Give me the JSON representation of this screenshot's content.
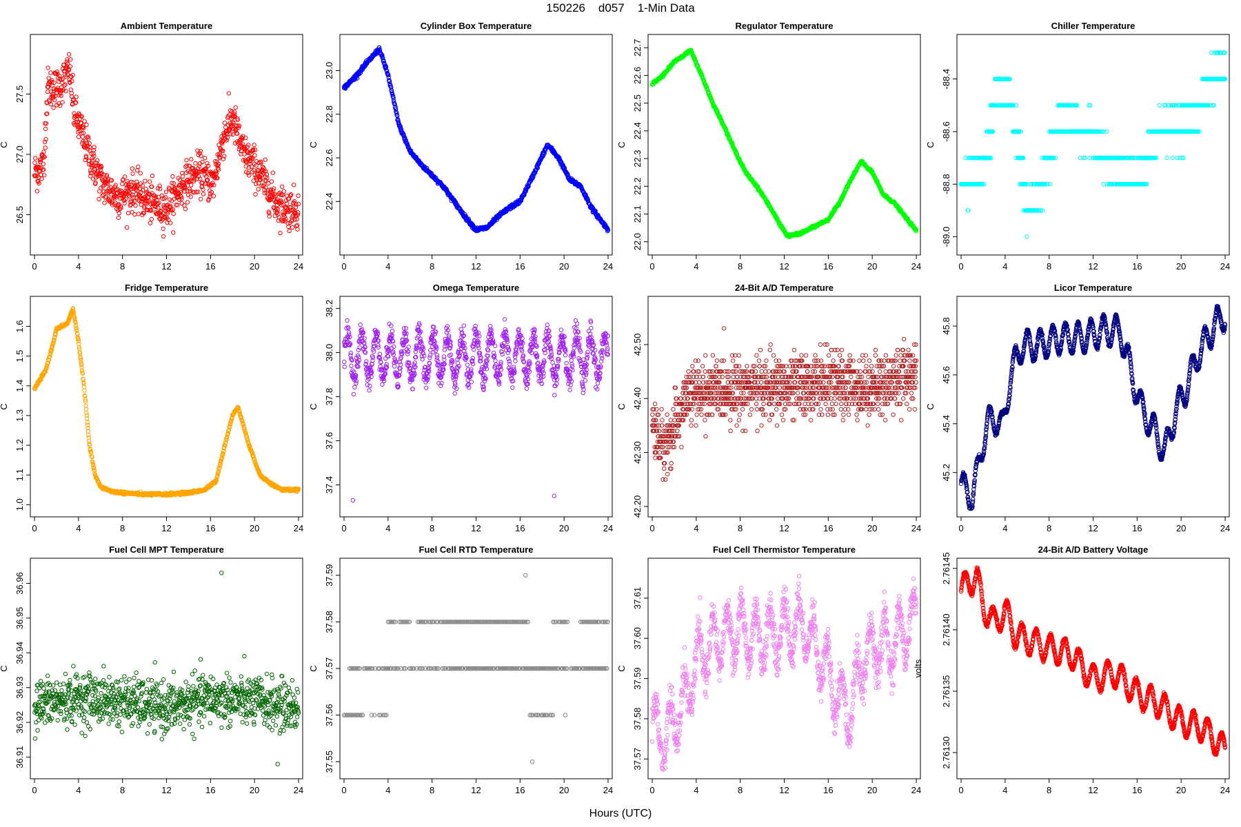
{
  "title": "150226    d057    1-Min Data",
  "xlabel": "Hours (UTC)",
  "chart_data": [
    {
      "type": "scatter",
      "title": "Ambient Temperature",
      "ylabel": "C",
      "color": "#ff0000",
      "xlim": [
        0,
        24
      ],
      "ylim": [
        26.23,
        27.93
      ],
      "xticks": [
        0,
        4,
        8,
        12,
        16,
        20,
        24
      ],
      "yticks": [
        "26.5",
        "27.0",
        "27.5"
      ],
      "anchors": [
        [
          0,
          26.85
        ],
        [
          0.8,
          26.9
        ],
        [
          1.2,
          27.55
        ],
        [
          2.2,
          27.55
        ],
        [
          3.2,
          27.7
        ],
        [
          3.6,
          27.35
        ],
        [
          4.2,
          27.2
        ],
        [
          5.2,
          26.95
        ],
        [
          6.2,
          26.75
        ],
        [
          7.5,
          26.65
        ],
        [
          9,
          26.7
        ],
        [
          10.5,
          26.6
        ],
        [
          12,
          26.55
        ],
        [
          13.5,
          26.75
        ],
        [
          15,
          26.85
        ],
        [
          16.2,
          26.75
        ],
        [
          17.2,
          27.15
        ],
        [
          18,
          27.3
        ],
        [
          19,
          27.0
        ],
        [
          20,
          26.9
        ],
        [
          21,
          26.75
        ],
        [
          22,
          26.6
        ],
        [
          23,
          26.55
        ],
        [
          24,
          26.55
        ]
      ],
      "noise": 0.15,
      "n": 1000
    },
    {
      "type": "scatter",
      "title": "Cylinder Box Temperature",
      "ylabel": "C",
      "color": "#0000ff",
      "xlim": [
        0,
        24
      ],
      "ylim": [
        22.19,
        23.13
      ],
      "xticks": [
        0,
        4,
        8,
        12,
        16,
        20,
        24
      ],
      "yticks": [
        "22.4",
        "22.6",
        "22.8",
        "23.0"
      ],
      "anchors": [
        [
          0,
          22.92
        ],
        [
          1,
          22.97
        ],
        [
          2,
          23.03
        ],
        [
          3.2,
          23.1
        ],
        [
          4,
          22.98
        ],
        [
          5,
          22.75
        ],
        [
          6,
          22.63
        ],
        [
          7,
          22.57
        ],
        [
          8,
          22.52
        ],
        [
          9,
          22.47
        ],
        [
          10,
          22.4
        ],
        [
          11,
          22.33
        ],
        [
          12,
          22.27
        ],
        [
          13,
          22.28
        ],
        [
          14,
          22.33
        ],
        [
          15,
          22.37
        ],
        [
          16,
          22.4
        ],
        [
          17,
          22.5
        ],
        [
          18.5,
          22.66
        ],
        [
          19.5,
          22.6
        ],
        [
          20.5,
          22.5
        ],
        [
          21.5,
          22.47
        ],
        [
          22.5,
          22.37
        ],
        [
          24,
          22.27
        ]
      ],
      "noise": 0.008,
      "n": 900
    },
    {
      "type": "scatter",
      "title": "Regulator Temperature",
      "ylabel": "C",
      "color": "#00ff00",
      "xlim": [
        0,
        24
      ],
      "ylim": [
        21.98,
        22.72
      ],
      "xticks": [
        0,
        4,
        8,
        12,
        16,
        20,
        24
      ],
      "yticks": [
        "22.0",
        "22.1",
        "22.2",
        "22.3",
        "22.4",
        "22.5",
        "22.6",
        "22.7"
      ],
      "anchors": [
        [
          0,
          22.57
        ],
        [
          1,
          22.6
        ],
        [
          2,
          22.65
        ],
        [
          3.5,
          22.69
        ],
        [
          4.5,
          22.6
        ],
        [
          5.5,
          22.5
        ],
        [
          6.5,
          22.42
        ],
        [
          7.5,
          22.33
        ],
        [
          8.5,
          22.25
        ],
        [
          9.5,
          22.2
        ],
        [
          10.5,
          22.14
        ],
        [
          11.5,
          22.07
        ],
        [
          12.3,
          22.02
        ],
        [
          13.5,
          22.03
        ],
        [
          14.5,
          22.05
        ],
        [
          16,
          22.08
        ],
        [
          17,
          22.14
        ],
        [
          18,
          22.22
        ],
        [
          19,
          22.29
        ],
        [
          20,
          22.25
        ],
        [
          21,
          22.17
        ],
        [
          22,
          22.14
        ],
        [
          24,
          22.04
        ]
      ],
      "noise": 0.004,
      "n": 900
    },
    {
      "type": "scatter",
      "title": "Chiller Temperature",
      "ylabel": "C",
      "color": "#00ffff",
      "xlim": [
        0,
        24
      ],
      "ylim": [
        -89.04,
        -88.26
      ],
      "xticks": [
        0,
        4,
        8,
        12,
        16,
        20,
        24
      ],
      "yticks": [
        "-89.0",
        "-88.8",
        "-88.6",
        "-88.4"
      ],
      "levels": [
        -89.0,
        -88.9,
        -88.8,
        -88.7,
        -88.6,
        -88.5,
        -88.4,
        -88.3
      ],
      "anchors": [
        [
          0,
          -88.8
        ],
        [
          1.5,
          -88.78
        ],
        [
          2.5,
          -88.65
        ],
        [
          3.2,
          -88.45
        ],
        [
          4.2,
          -88.45
        ],
        [
          5.2,
          -88.65
        ],
        [
          6,
          -88.9
        ],
        [
          7,
          -88.85
        ],
        [
          8,
          -88.68
        ],
        [
          9,
          -88.55
        ],
        [
          10,
          -88.55
        ],
        [
          11,
          -88.6
        ],
        [
          12,
          -88.6
        ],
        [
          13,
          -88.7
        ],
        [
          14.5,
          -88.75
        ],
        [
          16,
          -88.78
        ],
        [
          17,
          -88.7
        ],
        [
          18,
          -88.6
        ],
        [
          19.5,
          -88.58
        ],
        [
          21,
          -88.58
        ],
        [
          22.5,
          -88.42
        ],
        [
          24,
          -88.36
        ]
      ],
      "noise": 0.06,
      "n": 1400
    },
    {
      "type": "scatter",
      "title": "Fridge Temperature",
      "ylabel": "C",
      "color": "#ffa500",
      "xlim": [
        0,
        24
      ],
      "ylim": [
        0.985,
        1.675
      ],
      "xticks": [
        0,
        4,
        8,
        12,
        16,
        20,
        24
      ],
      "yticks": [
        "1.0",
        "1.1",
        "1.2",
        "1.3",
        "1.4",
        "1.5",
        "1.6"
      ],
      "anchors": [
        [
          0,
          1.39
        ],
        [
          0.5,
          1.42
        ],
        [
          1,
          1.45
        ],
        [
          1.6,
          1.53
        ],
        [
          2,
          1.59
        ],
        [
          3,
          1.61
        ],
        [
          3.5,
          1.66
        ],
        [
          4,
          1.55
        ],
        [
          4.5,
          1.4
        ],
        [
          5,
          1.2
        ],
        [
          5.5,
          1.1
        ],
        [
          6,
          1.06
        ],
        [
          7,
          1.045
        ],
        [
          8,
          1.04
        ],
        [
          10,
          1.035
        ],
        [
          12,
          1.035
        ],
        [
          14,
          1.04
        ],
        [
          15.5,
          1.05
        ],
        [
          16.5,
          1.08
        ],
        [
          17.3,
          1.2
        ],
        [
          18,
          1.3
        ],
        [
          18.5,
          1.33
        ],
        [
          19.5,
          1.2
        ],
        [
          20.5,
          1.1
        ],
        [
          21.5,
          1.07
        ],
        [
          22.5,
          1.05
        ],
        [
          24,
          1.05
        ]
      ],
      "noise": 0.004,
      "n": 900
    },
    {
      "type": "scatter",
      "title": "Omega Temperature",
      "ylabel": "C",
      "color": "#a020f0",
      "xlim": [
        0,
        24
      ],
      "ylim": [
        37.29,
        38.22
      ],
      "xticks": [
        0,
        4,
        8,
        12,
        16,
        20,
        24
      ],
      "yticks": [
        "37.4",
        "37.6",
        "37.8",
        "38.0",
        "38.2"
      ],
      "wave": {
        "base": 37.98,
        "amp": 0.1,
        "period": 1.3
      },
      "noise": 0.05,
      "n": 1100,
      "outliers": [
        [
          0.8,
          37.33
        ],
        [
          19.1,
          37.35
        ]
      ]
    },
    {
      "type": "scatter",
      "title": "24-Bit A/D Temperature",
      "ylabel": "C",
      "color": "#b22222",
      "xlim": [
        0,
        24
      ],
      "ylim": [
        42.195,
        42.575
      ],
      "xticks": [
        0,
        4,
        8,
        12,
        16,
        20,
        24
      ],
      "yticks": [
        "42.20",
        "42.30",
        "42.40",
        "42.50"
      ],
      "levels": [
        42.2,
        42.21,
        42.22,
        42.23,
        42.24,
        42.25,
        42.26,
        42.27,
        42.28,
        42.29,
        42.3,
        42.31,
        42.32,
        42.33,
        42.34,
        42.35,
        42.36,
        42.37,
        42.38,
        42.39,
        42.4,
        42.41,
        42.42,
        42.43,
        42.44,
        42.45,
        42.46,
        42.47,
        42.48,
        42.49,
        42.5,
        42.51,
        42.52,
        42.53,
        42.54,
        42.55,
        42.56
      ],
      "anchors": [
        [
          0,
          42.35
        ],
        [
          1,
          42.31
        ],
        [
          2,
          42.34
        ],
        [
          3,
          42.4
        ],
        [
          4,
          42.41
        ],
        [
          8,
          42.42
        ],
        [
          12,
          42.42
        ],
        [
          16,
          42.43
        ],
        [
          20,
          42.42
        ],
        [
          24,
          42.45
        ]
      ],
      "noise": 0.05,
      "n": 1400
    },
    {
      "type": "scatter",
      "title": "Licor Temperature",
      "ylabel": "C",
      "color": "#000080",
      "xlim": [
        0,
        24
      ],
      "ylim": [
        45.05,
        45.89
      ],
      "xticks": [
        0,
        4,
        8,
        12,
        16,
        20,
        24
      ],
      "yticks": [
        "45.2",
        "45.4",
        "45.6",
        "45.8"
      ],
      "anchors": [
        [
          0,
          45.16
        ],
        [
          0.4,
          45.12
        ],
        [
          1,
          45.1
        ],
        [
          1.5,
          45.2
        ],
        [
          2,
          45.33
        ],
        [
          2.5,
          45.41
        ],
        [
          3.2,
          45.42
        ],
        [
          3.8,
          45.38
        ],
        [
          4.5,
          45.6
        ],
        [
          5.5,
          45.72
        ],
        [
          7,
          45.72
        ],
        [
          9,
          45.75
        ],
        [
          11,
          45.75
        ],
        [
          13,
          45.78
        ],
        [
          14.5,
          45.78
        ],
        [
          15.5,
          45.6
        ],
        [
          16.5,
          45.45
        ],
        [
          17.5,
          45.38
        ],
        [
          18.5,
          45.28
        ],
        [
          19.5,
          45.45
        ],
        [
          20.5,
          45.55
        ],
        [
          21.5,
          45.68
        ],
        [
          23,
          45.8
        ],
        [
          24,
          45.85
        ]
      ],
      "wave": {
        "amp": 0.06,
        "period": 1.15
      },
      "noise": 0.008,
      "n": 1400
    },
    {
      "type": "scatter",
      "title": "Fuel Cell MPT Temperature",
      "ylabel": "C",
      "color": "#006400",
      "xlim": [
        0,
        24
      ],
      "ylim": [
        36.906,
        36.965
      ],
      "xticks": [
        0,
        4,
        8,
        12,
        16,
        20,
        24
      ],
      "yticks": [
        "36.91",
        "36.92",
        "36.93",
        "36.94",
        "36.95",
        "36.96"
      ],
      "anchors": [
        [
          0,
          36.925
        ],
        [
          4,
          36.927
        ],
        [
          8,
          36.926
        ],
        [
          12,
          36.924
        ],
        [
          16,
          36.927
        ],
        [
          20,
          36.926
        ],
        [
          24,
          36.924
        ]
      ],
      "noise": 0.0065,
      "n": 1000,
      "outliers": [
        [
          17,
          36.963
        ],
        [
          22.1,
          36.908
        ]
      ]
    },
    {
      "type": "scatter",
      "title": "Fuel Cell RTD Temperature",
      "ylabel": "C",
      "color": "#808080",
      "xlim": [
        0,
        24
      ],
      "ylim": [
        37.548,
        37.592
      ],
      "xticks": [
        0,
        4,
        8,
        12,
        16,
        20,
        24
      ],
      "yticks": [
        "37.55",
        "37.56",
        "37.57",
        "37.58",
        "37.59"
      ],
      "rows": [
        {
          "y": 37.56,
          "spans": [
            [
              0,
              1.8
            ],
            [
              2.5,
              2.8
            ],
            [
              3.2,
              3.9
            ],
            [
              16.9,
              19
            ]
          ]
        },
        {
          "y": 37.57,
          "spans": [
            [
              0.5,
              24
            ]
          ]
        },
        {
          "y": 37.58,
          "spans": [
            [
              4,
              6
            ],
            [
              6.7,
              16.8
            ],
            [
              19,
              20.5
            ],
            [
              21.5,
              24
            ]
          ]
        }
      ],
      "outliers": [
        [
          16.5,
          37.59
        ],
        [
          17.1,
          37.55
        ],
        [
          20.1,
          37.56
        ]
      ]
    },
    {
      "type": "scatter",
      "title": "Fuel Cell Thermistor Temperature",
      "ylabel": "C",
      "color": "#ee82ee",
      "xlim": [
        0,
        24
      ],
      "ylim": [
        37.567,
        37.618
      ],
      "xticks": [
        0,
        4,
        8,
        12,
        16,
        20,
        24
      ],
      "yticks": [
        "37.57",
        "37.58",
        "37.59",
        "37.60",
        "37.61"
      ],
      "anchors": [
        [
          0,
          37.578
        ],
        [
          1,
          37.574
        ],
        [
          2,
          37.58
        ],
        [
          3,
          37.584
        ],
        [
          4,
          37.595
        ],
        [
          6,
          37.6
        ],
        [
          8,
          37.602
        ],
        [
          10,
          37.6
        ],
        [
          12,
          37.602
        ],
        [
          14,
          37.603
        ],
        [
          15,
          37.597
        ],
        [
          16,
          37.592
        ],
        [
          17,
          37.585
        ],
        [
          18,
          37.582
        ],
        [
          19,
          37.594
        ],
        [
          20,
          37.598
        ],
        [
          22,
          37.598
        ],
        [
          24,
          37.606
        ]
      ],
      "wave": {
        "amp": 0.007,
        "period": 1.3
      },
      "noise": 0.004,
      "n": 1300
    },
    {
      "type": "scatter",
      "title": "24-Bit A/D Battery Voltage",
      "ylabel": "volts",
      "color": "#ff0000",
      "xlim": [
        0,
        24
      ],
      "ylim": [
        2.761285,
        2.761452
      ],
      "xticks": [
        0,
        4,
        8,
        12,
        16,
        20,
        24
      ],
      "yticks": [
        "2.76130",
        "2.76135",
        "2.76140",
        "2.76145"
      ],
      "anchors": [
        [
          0,
          2.761432
        ],
        [
          0.6,
          2.761438
        ],
        [
          1.4,
          2.761443
        ],
        [
          2,
          2.76142
        ],
        [
          3,
          2.761405
        ],
        [
          4,
          2.761415
        ],
        [
          5,
          2.761395
        ],
        [
          6,
          2.761392
        ],
        [
          8,
          2.761385
        ],
        [
          10,
          2.76138
        ],
        [
          12,
          2.76136
        ],
        [
          14,
          2.761365
        ],
        [
          16,
          2.761348
        ],
        [
          18,
          2.76134
        ],
        [
          20,
          2.761325
        ],
        [
          22,
          2.76132
        ],
        [
          24,
          2.761302
        ]
      ],
      "wave": {
        "amp": 1.1e-05,
        "period": 1.3
      },
      "noise": 1.5e-06,
      "n": 1400
    }
  ]
}
